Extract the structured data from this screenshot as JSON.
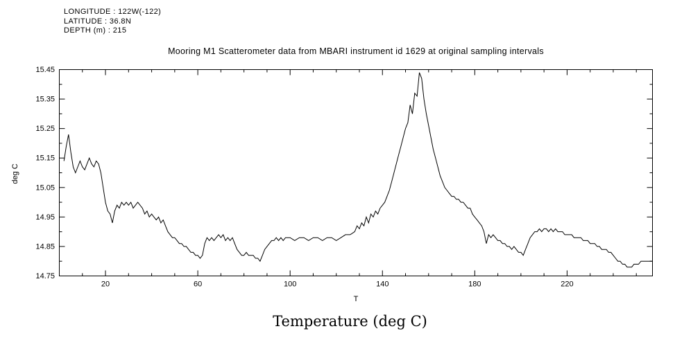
{
  "header": {
    "longitude": "LONGITUDE : 122W(-122)",
    "latitude": "LATITUDE : 36.8N",
    "depth": "DEPTH (m) : 215"
  },
  "caption": "Temperature (deg C)",
  "chart_data": {
    "type": "line",
    "title": "Mooring M1 Scatterometer data from MBARI instrument id 1629 at original sampling intervals",
    "xlabel": "T",
    "ylabel": "deg C",
    "xlim": [
      0,
      257
    ],
    "ylim": [
      14.75,
      15.45
    ],
    "x_ticks": [
      20,
      60,
      100,
      140,
      180,
      220
    ],
    "x_tick_labels": [
      "20",
      "60",
      "100",
      "140",
      "180",
      "220"
    ],
    "y_ticks": [
      14.75,
      14.85,
      14.95,
      15.05,
      15.15,
      15.25,
      15.35,
      15.45
    ],
    "y_tick_labels": [
      "14.75",
      "14.85",
      "14.95",
      "15.05",
      "15.15",
      "15.25",
      "15.35",
      "15.45"
    ],
    "grid": false,
    "line_color": "#000000",
    "background_color": "#ffffff",
    "series": [
      {
        "name": "temperature",
        "points": [
          [
            2,
            15.14
          ],
          [
            3,
            15.19
          ],
          [
            4,
            15.23
          ],
          [
            5,
            15.17
          ],
          [
            6,
            15.12
          ],
          [
            7,
            15.1
          ],
          [
            8,
            15.12
          ],
          [
            9,
            15.14
          ],
          [
            10,
            15.12
          ],
          [
            11,
            15.11
          ],
          [
            12,
            15.13
          ],
          [
            13,
            15.15
          ],
          [
            14,
            15.13
          ],
          [
            15,
            15.12
          ],
          [
            16,
            15.14
          ],
          [
            17,
            15.13
          ],
          [
            18,
            15.1
          ],
          [
            19,
            15.05
          ],
          [
            20,
            15.0
          ],
          [
            21,
            14.97
          ],
          [
            22,
            14.96
          ],
          [
            23,
            14.93
          ],
          [
            24,
            14.97
          ],
          [
            25,
            14.99
          ],
          [
            26,
            14.98
          ],
          [
            27,
            15.0
          ],
          [
            28,
            14.99
          ],
          [
            29,
            15.0
          ],
          [
            30,
            14.99
          ],
          [
            31,
            15.0
          ],
          [
            32,
            14.98
          ],
          [
            33,
            14.99
          ],
          [
            34,
            15.0
          ],
          [
            35,
            14.99
          ],
          [
            36,
            14.98
          ],
          [
            37,
            14.96
          ],
          [
            38,
            14.97
          ],
          [
            39,
            14.95
          ],
          [
            40,
            14.96
          ],
          [
            41,
            14.95
          ],
          [
            42,
            14.94
          ],
          [
            43,
            14.95
          ],
          [
            44,
            14.93
          ],
          [
            45,
            14.94
          ],
          [
            46,
            14.92
          ],
          [
            47,
            14.9
          ],
          [
            48,
            14.89
          ],
          [
            49,
            14.88
          ],
          [
            50,
            14.88
          ],
          [
            51,
            14.87
          ],
          [
            52,
            14.86
          ],
          [
            53,
            14.86
          ],
          [
            54,
            14.85
          ],
          [
            55,
            14.85
          ],
          [
            56,
            14.84
          ],
          [
            57,
            14.83
          ],
          [
            58,
            14.83
          ],
          [
            59,
            14.82
          ],
          [
            60,
            14.82
          ],
          [
            61,
            14.81
          ],
          [
            62,
            14.82
          ],
          [
            63,
            14.86
          ],
          [
            64,
            14.88
          ],
          [
            65,
            14.87
          ],
          [
            66,
            14.88
          ],
          [
            67,
            14.87
          ],
          [
            68,
            14.88
          ],
          [
            69,
            14.89
          ],
          [
            70,
            14.88
          ],
          [
            71,
            14.89
          ],
          [
            72,
            14.87
          ],
          [
            73,
            14.88
          ],
          [
            74,
            14.87
          ],
          [
            75,
            14.88
          ],
          [
            76,
            14.86
          ],
          [
            77,
            14.84
          ],
          [
            78,
            14.83
          ],
          [
            79,
            14.82
          ],
          [
            80,
            14.82
          ],
          [
            81,
            14.83
          ],
          [
            82,
            14.82
          ],
          [
            83,
            14.82
          ],
          [
            84,
            14.82
          ],
          [
            85,
            14.81
          ],
          [
            86,
            14.81
          ],
          [
            87,
            14.8
          ],
          [
            88,
            14.82
          ],
          [
            89,
            14.84
          ],
          [
            90,
            14.85
          ],
          [
            91,
            14.86
          ],
          [
            92,
            14.87
          ],
          [
            93,
            14.87
          ],
          [
            94,
            14.88
          ],
          [
            95,
            14.87
          ],
          [
            96,
            14.88
          ],
          [
            97,
            14.87
          ],
          [
            98,
            14.88
          ],
          [
            100,
            14.88
          ],
          [
            102,
            14.87
          ],
          [
            104,
            14.88
          ],
          [
            106,
            14.88
          ],
          [
            108,
            14.87
          ],
          [
            110,
            14.88
          ],
          [
            112,
            14.88
          ],
          [
            114,
            14.87
          ],
          [
            116,
            14.88
          ],
          [
            118,
            14.88
          ],
          [
            120,
            14.87
          ],
          [
            122,
            14.88
          ],
          [
            124,
            14.89
          ],
          [
            126,
            14.89
          ],
          [
            128,
            14.9
          ],
          [
            129,
            14.92
          ],
          [
            130,
            14.91
          ],
          [
            131,
            14.93
          ],
          [
            132,
            14.92
          ],
          [
            133,
            14.95
          ],
          [
            134,
            14.93
          ],
          [
            135,
            14.96
          ],
          [
            136,
            14.95
          ],
          [
            137,
            14.97
          ],
          [
            138,
            14.96
          ],
          [
            139,
            14.98
          ],
          [
            140,
            14.99
          ],
          [
            141,
            15.0
          ],
          [
            142,
            15.02
          ],
          [
            143,
            15.04
          ],
          [
            144,
            15.07
          ],
          [
            145,
            15.1
          ],
          [
            146,
            15.13
          ],
          [
            147,
            15.16
          ],
          [
            148,
            15.19
          ],
          [
            149,
            15.22
          ],
          [
            150,
            15.25
          ],
          [
            151,
            15.27
          ],
          [
            152,
            15.33
          ],
          [
            153,
            15.3
          ],
          [
            154,
            15.37
          ],
          [
            155,
            15.36
          ],
          [
            156,
            15.44
          ],
          [
            157,
            15.42
          ],
          [
            158,
            15.35
          ],
          [
            159,
            15.3
          ],
          [
            160,
            15.26
          ],
          [
            161,
            15.22
          ],
          [
            162,
            15.18
          ],
          [
            163,
            15.15
          ],
          [
            164,
            15.12
          ],
          [
            165,
            15.09
          ],
          [
            166,
            15.07
          ],
          [
            167,
            15.05
          ],
          [
            168,
            15.04
          ],
          [
            169,
            15.03
          ],
          [
            170,
            15.02
          ],
          [
            171,
            15.02
          ],
          [
            172,
            15.01
          ],
          [
            173,
            15.01
          ],
          [
            174,
            15.0
          ],
          [
            175,
            15.0
          ],
          [
            176,
            14.99
          ],
          [
            177,
            14.98
          ],
          [
            178,
            14.98
          ],
          [
            179,
            14.96
          ],
          [
            180,
            14.95
          ],
          [
            181,
            14.94
          ],
          [
            182,
            14.93
          ],
          [
            183,
            14.92
          ],
          [
            184,
            14.9
          ],
          [
            185,
            14.86
          ],
          [
            186,
            14.89
          ],
          [
            187,
            14.88
          ],
          [
            188,
            14.89
          ],
          [
            189,
            14.88
          ],
          [
            190,
            14.87
          ],
          [
            191,
            14.87
          ],
          [
            192,
            14.86
          ],
          [
            193,
            14.86
          ],
          [
            194,
            14.85
          ],
          [
            195,
            14.85
          ],
          [
            196,
            14.84
          ],
          [
            197,
            14.85
          ],
          [
            198,
            14.84
          ],
          [
            199,
            14.83
          ],
          [
            200,
            14.83
          ],
          [
            201,
            14.82
          ],
          [
            202,
            14.84
          ],
          [
            203,
            14.86
          ],
          [
            204,
            14.88
          ],
          [
            205,
            14.89
          ],
          [
            206,
            14.9
          ],
          [
            207,
            14.9
          ],
          [
            208,
            14.91
          ],
          [
            209,
            14.9
          ],
          [
            210,
            14.91
          ],
          [
            211,
            14.91
          ],
          [
            212,
            14.9
          ],
          [
            213,
            14.91
          ],
          [
            214,
            14.9
          ],
          [
            215,
            14.91
          ],
          [
            216,
            14.9
          ],
          [
            217,
            14.9
          ],
          [
            218,
            14.9
          ],
          [
            219,
            14.89
          ],
          [
            220,
            14.89
          ],
          [
            221,
            14.89
          ],
          [
            222,
            14.89
          ],
          [
            223,
            14.88
          ],
          [
            224,
            14.88
          ],
          [
            225,
            14.88
          ],
          [
            226,
            14.88
          ],
          [
            227,
            14.87
          ],
          [
            228,
            14.87
          ],
          [
            229,
            14.87
          ],
          [
            230,
            14.86
          ],
          [
            231,
            14.86
          ],
          [
            232,
            14.86
          ],
          [
            233,
            14.85
          ],
          [
            234,
            14.85
          ],
          [
            235,
            14.84
          ],
          [
            236,
            14.84
          ],
          [
            237,
            14.84
          ],
          [
            238,
            14.83
          ],
          [
            239,
            14.83
          ],
          [
            240,
            14.82
          ],
          [
            241,
            14.81
          ],
          [
            242,
            14.8
          ],
          [
            243,
            14.8
          ],
          [
            244,
            14.79
          ],
          [
            245,
            14.79
          ],
          [
            246,
            14.78
          ],
          [
            247,
            14.78
          ],
          [
            248,
            14.78
          ],
          [
            249,
            14.79
          ],
          [
            250,
            14.79
          ],
          [
            251,
            14.79
          ],
          [
            252,
            14.8
          ],
          [
            253,
            14.8
          ],
          [
            254,
            14.8
          ],
          [
            255,
            14.8
          ],
          [
            257,
            14.8
          ]
        ]
      }
    ]
  }
}
